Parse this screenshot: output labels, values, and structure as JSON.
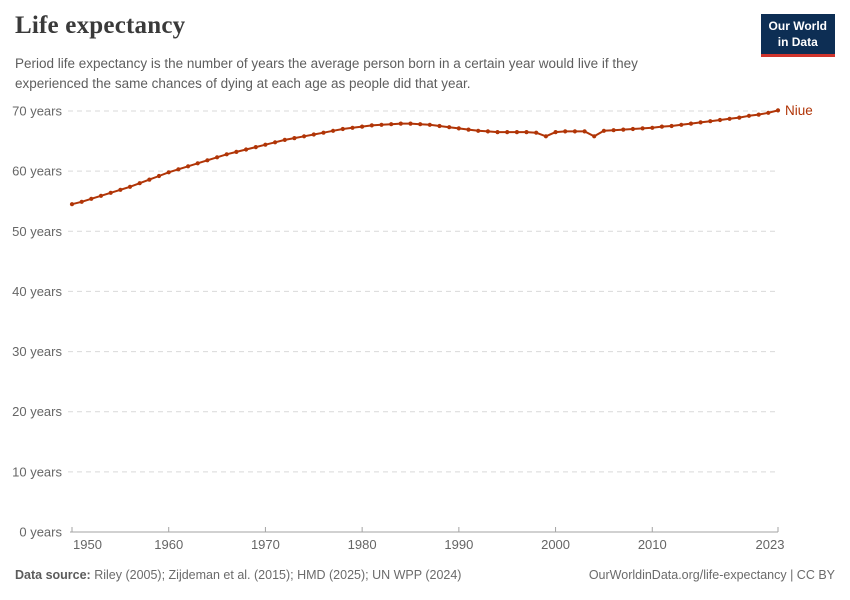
{
  "header": {
    "title": "Life expectancy",
    "subtitle_lines": [
      "Period life expectancy is the number of years the average person born in a certain year would live if they",
      "experienced the same chances of dying at each age as people did that year."
    ],
    "logo": {
      "line1": "Our World",
      "line2": "in Data",
      "bg_color": "#0d2e54",
      "accent_color": "#d0342c"
    }
  },
  "chart_data": {
    "type": "line",
    "title": "Life expectancy",
    "entity_label": "Niue",
    "xlim": [
      1950,
      2023
    ],
    "ylim": [
      0,
      70
    ],
    "x_ticks": [
      1950,
      1960,
      1970,
      1980,
      1990,
      2000,
      2010,
      2023
    ],
    "y_ticks": [
      0,
      10,
      20,
      30,
      40,
      50,
      60,
      70
    ],
    "y_tick_suffix": " years",
    "grid": true,
    "gridline_color": "#d9d9d9",
    "axis_color": "#a3a3a3",
    "tick_label_color": "#666666",
    "series": [
      {
        "name": "Niue",
        "color": "#B13507",
        "years": [
          1950,
          1951,
          1952,
          1953,
          1954,
          1955,
          1956,
          1957,
          1958,
          1959,
          1960,
          1961,
          1962,
          1963,
          1964,
          1965,
          1966,
          1967,
          1968,
          1969,
          1970,
          1971,
          1972,
          1973,
          1974,
          1975,
          1976,
          1977,
          1978,
          1979,
          1980,
          1981,
          1982,
          1983,
          1984,
          1985,
          1986,
          1987,
          1988,
          1989,
          1990,
          1991,
          1992,
          1993,
          1994,
          1995,
          1996,
          1997,
          1998,
          1999,
          2000,
          2001,
          2002,
          2003,
          2004,
          2005,
          2006,
          2007,
          2008,
          2009,
          2010,
          2011,
          2012,
          2013,
          2014,
          2015,
          2016,
          2017,
          2018,
          2019,
          2020,
          2021,
          2022,
          2023
        ],
        "values": [
          54.5,
          54.9,
          55.4,
          55.9,
          56.4,
          56.9,
          57.4,
          58.0,
          58.6,
          59.2,
          59.8,
          60.3,
          60.8,
          61.3,
          61.8,
          62.3,
          62.8,
          63.2,
          63.6,
          64.0,
          64.4,
          64.8,
          65.2,
          65.5,
          65.8,
          66.1,
          66.4,
          66.7,
          67.0,
          67.2,
          67.4,
          67.6,
          67.7,
          67.8,
          67.9,
          67.9,
          67.8,
          67.7,
          67.5,
          67.3,
          67.1,
          66.9,
          66.7,
          66.6,
          66.5,
          66.5,
          66.5,
          66.5,
          66.4,
          65.8,
          66.5,
          66.6,
          66.6,
          66.6,
          65.8,
          66.7,
          66.8,
          66.9,
          67.0,
          67.1,
          67.2,
          67.4,
          67.5,
          67.7,
          67.9,
          68.1,
          68.3,
          68.5,
          68.7,
          68.9,
          69.2,
          69.4,
          69.7,
          70.1
        ]
      }
    ]
  },
  "footer": {
    "datasource_label": "Data source:",
    "datasource_text": " Riley (2005); Zijdeman et al. (2015); HMD (2025); UN WPP (2024)",
    "credit": "OurWorldinData.org/life-expectancy | CC BY"
  }
}
